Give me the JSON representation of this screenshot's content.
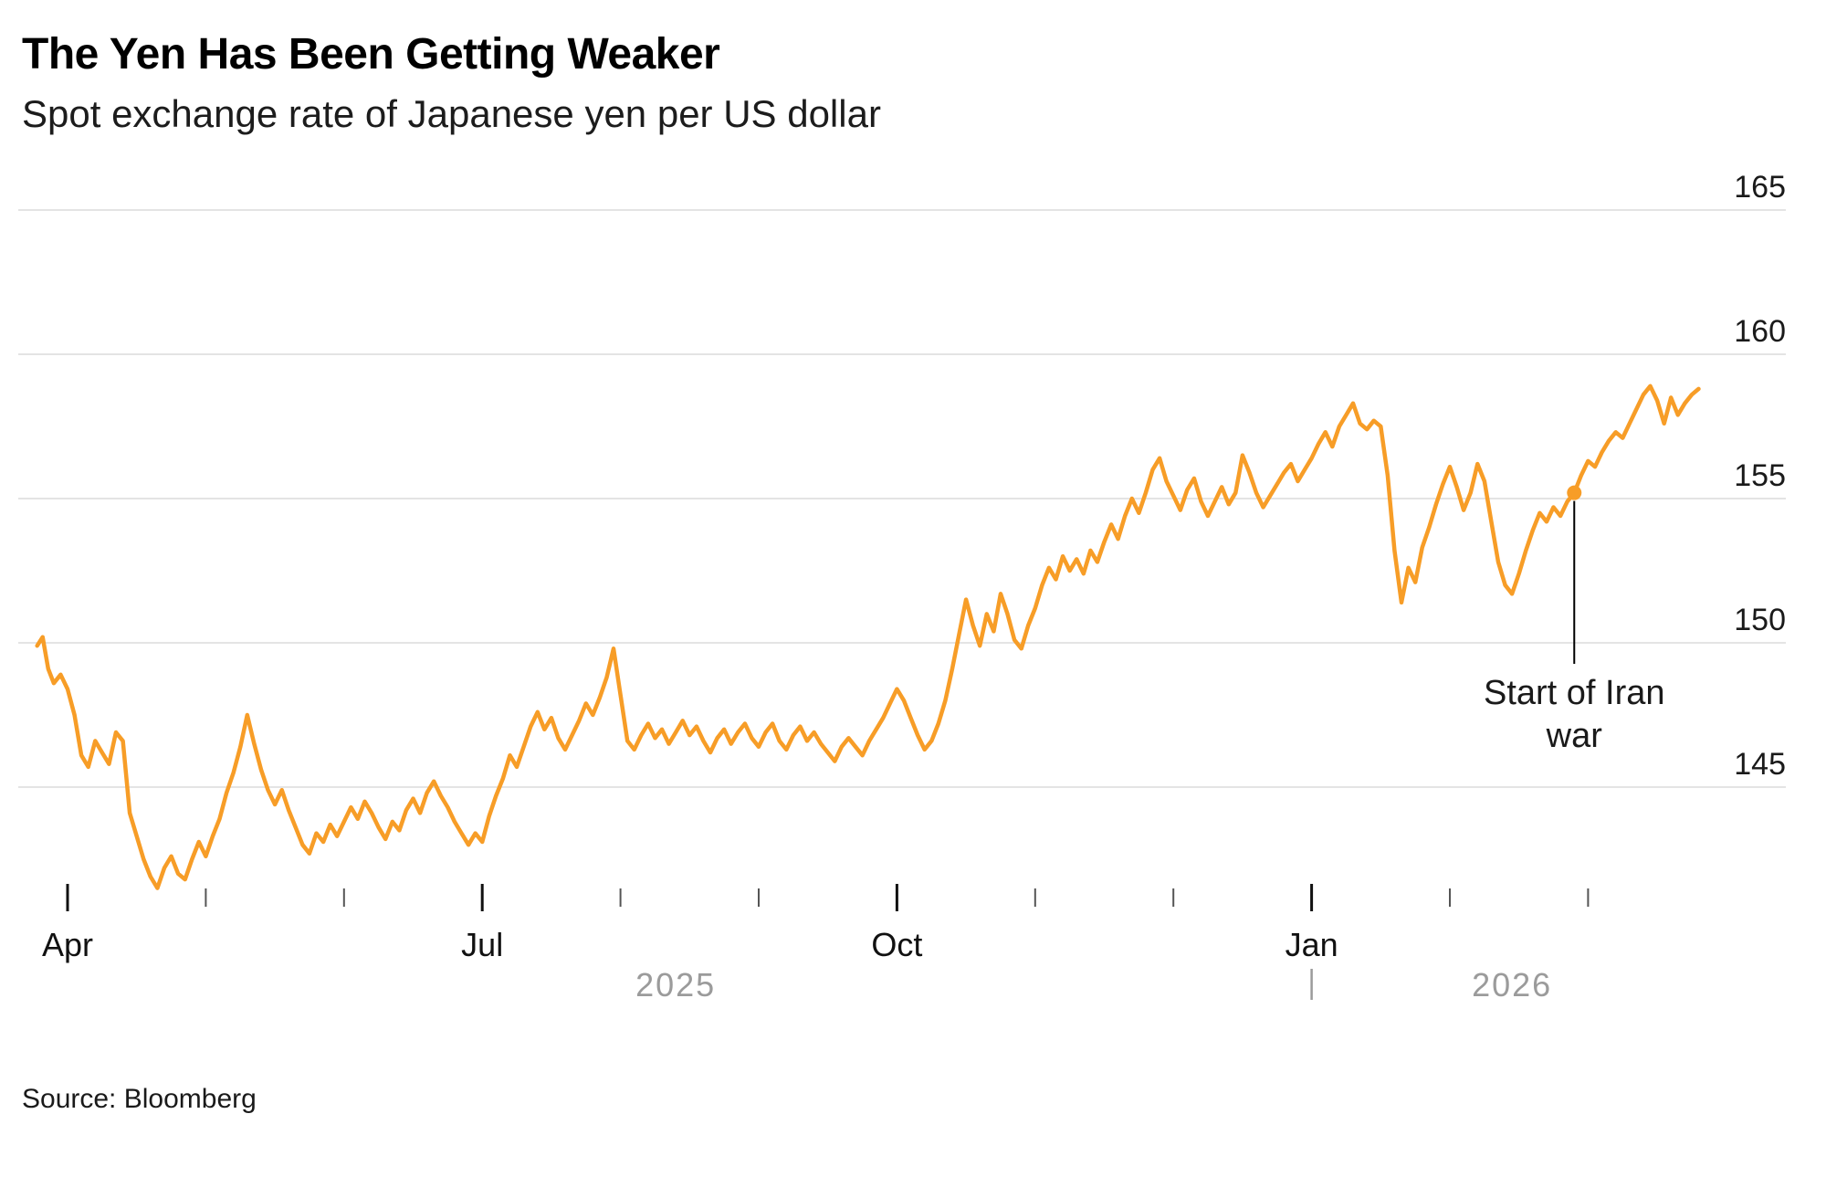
{
  "header": {
    "title": "The Yen Has Been Getting Weaker",
    "subtitle": "Spot exchange rate of Japanese yen per US dollar"
  },
  "source_note": "Source: Bloomberg",
  "chart_data": {
    "type": "line",
    "title": "The Yen Has Been Getting Weaker",
    "subtitle": "Spot exchange rate of Japanese yen per US dollar",
    "xlabel": "",
    "ylabel": "",
    "grid": "horizontal",
    "legend": "none",
    "ylim": [
      141,
      166.5
    ],
    "y_ticks": [
      145,
      150,
      155,
      160,
      165
    ],
    "x_unit": "months since 2025-04-01",
    "x_major_ticks": [
      {
        "t": 0,
        "label": "Apr"
      },
      {
        "t": 3,
        "label": "Jul"
      },
      {
        "t": 6,
        "label": "Oct"
      },
      {
        "t": 9,
        "label": "Jan"
      }
    ],
    "x_minor_ticks": [
      0,
      1,
      2,
      3,
      4,
      5,
      6,
      7,
      8,
      9,
      10,
      11
    ],
    "year_labels": [
      {
        "t": 4.4,
        "label": "2025"
      },
      {
        "t": 10.45,
        "label": "2026"
      }
    ],
    "year_divider_t": 9.0,
    "line_color": "#F79D27",
    "annotation": {
      "t": 10.9,
      "value": 155.2,
      "label_lines": [
        "Start of Iran",
        "war"
      ]
    },
    "series": [
      {
        "name": "Japanese yen per US dollar (spot)",
        "points": [
          [
            -0.22,
            149.9
          ],
          [
            -0.18,
            150.2
          ],
          [
            -0.14,
            149.1
          ],
          [
            -0.1,
            148.6
          ],
          [
            -0.05,
            148.9
          ],
          [
            0,
            148.4
          ],
          [
            0.05,
            147.5
          ],
          [
            0.1,
            146.1
          ],
          [
            0.15,
            145.7
          ],
          [
            0.2,
            146.6
          ],
          [
            0.25,
            146.2
          ],
          [
            0.3,
            145.8
          ],
          [
            0.35,
            146.9
          ],
          [
            0.4,
            146.6
          ],
          [
            0.45,
            144.1
          ],
          [
            0.5,
            143.3
          ],
          [
            0.55,
            142.5
          ],
          [
            0.6,
            141.9
          ],
          [
            0.65,
            141.5
          ],
          [
            0.7,
            142.2
          ],
          [
            0.75,
            142.6
          ],
          [
            0.8,
            142.0
          ],
          [
            0.85,
            141.8
          ],
          [
            0.9,
            142.5
          ],
          [
            0.95,
            143.1
          ],
          [
            1.0,
            142.6
          ],
          [
            1.05,
            143.3
          ],
          [
            1.1,
            143.9
          ],
          [
            1.15,
            144.8
          ],
          [
            1.2,
            145.5
          ],
          [
            1.25,
            146.4
          ],
          [
            1.3,
            147.5
          ],
          [
            1.35,
            146.5
          ],
          [
            1.4,
            145.6
          ],
          [
            1.45,
            144.9
          ],
          [
            1.5,
            144.4
          ],
          [
            1.55,
            144.9
          ],
          [
            1.6,
            144.2
          ],
          [
            1.65,
            143.6
          ],
          [
            1.7,
            143.0
          ],
          [
            1.75,
            142.7
          ],
          [
            1.8,
            143.4
          ],
          [
            1.85,
            143.1
          ],
          [
            1.9,
            143.7
          ],
          [
            1.95,
            143.3
          ],
          [
            2.0,
            143.8
          ],
          [
            2.05,
            144.3
          ],
          [
            2.1,
            143.9
          ],
          [
            2.15,
            144.5
          ],
          [
            2.2,
            144.1
          ],
          [
            2.25,
            143.6
          ],
          [
            2.3,
            143.2
          ],
          [
            2.35,
            143.8
          ],
          [
            2.4,
            143.5
          ],
          [
            2.45,
            144.2
          ],
          [
            2.5,
            144.6
          ],
          [
            2.55,
            144.1
          ],
          [
            2.6,
            144.8
          ],
          [
            2.65,
            145.2
          ],
          [
            2.7,
            144.7
          ],
          [
            2.75,
            144.3
          ],
          [
            2.8,
            143.8
          ],
          [
            2.85,
            143.4
          ],
          [
            2.9,
            143.0
          ],
          [
            2.95,
            143.4
          ],
          [
            3.0,
            143.1
          ],
          [
            3.05,
            144.0
          ],
          [
            3.1,
            144.7
          ],
          [
            3.15,
            145.3
          ],
          [
            3.2,
            146.1
          ],
          [
            3.25,
            145.7
          ],
          [
            3.3,
            146.4
          ],
          [
            3.35,
            147.1
          ],
          [
            3.4,
            147.6
          ],
          [
            3.45,
            147.0
          ],
          [
            3.5,
            147.4
          ],
          [
            3.55,
            146.7
          ],
          [
            3.6,
            146.3
          ],
          [
            3.65,
            146.8
          ],
          [
            3.7,
            147.3
          ],
          [
            3.75,
            147.9
          ],
          [
            3.8,
            147.5
          ],
          [
            3.85,
            148.1
          ],
          [
            3.9,
            148.8
          ],
          [
            3.95,
            149.8
          ],
          [
            4.0,
            148.2
          ],
          [
            4.05,
            146.6
          ],
          [
            4.1,
            146.3
          ],
          [
            4.15,
            146.8
          ],
          [
            4.2,
            147.2
          ],
          [
            4.25,
            146.7
          ],
          [
            4.3,
            147.0
          ],
          [
            4.35,
            146.5
          ],
          [
            4.4,
            146.9
          ],
          [
            4.45,
            147.3
          ],
          [
            4.5,
            146.8
          ],
          [
            4.55,
            147.1
          ],
          [
            4.6,
            146.6
          ],
          [
            4.65,
            146.2
          ],
          [
            4.7,
            146.7
          ],
          [
            4.75,
            147.0
          ],
          [
            4.8,
            146.5
          ],
          [
            4.85,
            146.9
          ],
          [
            4.9,
            147.2
          ],
          [
            4.95,
            146.7
          ],
          [
            5.0,
            146.4
          ],
          [
            5.05,
            146.9
          ],
          [
            5.1,
            147.2
          ],
          [
            5.15,
            146.6
          ],
          [
            5.2,
            146.3
          ],
          [
            5.25,
            146.8
          ],
          [
            5.3,
            147.1
          ],
          [
            5.35,
            146.6
          ],
          [
            5.4,
            146.9
          ],
          [
            5.45,
            146.5
          ],
          [
            5.5,
            146.2
          ],
          [
            5.55,
            145.9
          ],
          [
            5.6,
            146.4
          ],
          [
            5.65,
            146.7
          ],
          [
            5.7,
            146.4
          ],
          [
            5.75,
            146.1
          ],
          [
            5.8,
            146.6
          ],
          [
            5.85,
            147.0
          ],
          [
            5.9,
            147.4
          ],
          [
            5.95,
            147.9
          ],
          [
            6.0,
            148.4
          ],
          [
            6.05,
            148.0
          ],
          [
            6.1,
            147.4
          ],
          [
            6.15,
            146.8
          ],
          [
            6.2,
            146.3
          ],
          [
            6.25,
            146.6
          ],
          [
            6.3,
            147.2
          ],
          [
            6.35,
            148.0
          ],
          [
            6.4,
            149.1
          ],
          [
            6.45,
            150.3
          ],
          [
            6.5,
            151.5
          ],
          [
            6.55,
            150.6
          ],
          [
            6.6,
            149.9
          ],
          [
            6.65,
            151.0
          ],
          [
            6.7,
            150.4
          ],
          [
            6.75,
            151.7
          ],
          [
            6.8,
            151.0
          ],
          [
            6.85,
            150.1
          ],
          [
            6.9,
            149.8
          ],
          [
            6.95,
            150.6
          ],
          [
            7.0,
            151.2
          ],
          [
            7.05,
            152.0
          ],
          [
            7.1,
            152.6
          ],
          [
            7.15,
            152.2
          ],
          [
            7.2,
            153.0
          ],
          [
            7.25,
            152.5
          ],
          [
            7.3,
            152.9
          ],
          [
            7.35,
            152.4
          ],
          [
            7.4,
            153.2
          ],
          [
            7.45,
            152.8
          ],
          [
            7.5,
            153.5
          ],
          [
            7.55,
            154.1
          ],
          [
            7.6,
            153.6
          ],
          [
            7.65,
            154.4
          ],
          [
            7.7,
            155.0
          ],
          [
            7.75,
            154.5
          ],
          [
            7.8,
            155.2
          ],
          [
            7.85,
            156.0
          ],
          [
            7.9,
            156.4
          ],
          [
            7.95,
            155.6
          ],
          [
            8.0,
            155.1
          ],
          [
            8.05,
            154.6
          ],
          [
            8.1,
            155.3
          ],
          [
            8.15,
            155.7
          ],
          [
            8.2,
            154.9
          ],
          [
            8.25,
            154.4
          ],
          [
            8.3,
            154.9
          ],
          [
            8.35,
            155.4
          ],
          [
            8.4,
            154.8
          ],
          [
            8.45,
            155.2
          ],
          [
            8.5,
            156.5
          ],
          [
            8.55,
            155.9
          ],
          [
            8.6,
            155.2
          ],
          [
            8.65,
            154.7
          ],
          [
            8.7,
            155.1
          ],
          [
            8.75,
            155.5
          ],
          [
            8.8,
            155.9
          ],
          [
            8.85,
            156.2
          ],
          [
            8.9,
            155.6
          ],
          [
            8.95,
            156.0
          ],
          [
            9.0,
            156.4
          ],
          [
            9.05,
            156.9
          ],
          [
            9.1,
            157.3
          ],
          [
            9.15,
            156.8
          ],
          [
            9.2,
            157.5
          ],
          [
            9.25,
            157.9
          ],
          [
            9.3,
            158.3
          ],
          [
            9.35,
            157.6
          ],
          [
            9.4,
            157.4
          ],
          [
            9.45,
            157.7
          ],
          [
            9.5,
            157.5
          ],
          [
            9.55,
            155.8
          ],
          [
            9.6,
            153.2
          ],
          [
            9.65,
            151.4
          ],
          [
            9.7,
            152.6
          ],
          [
            9.75,
            152.1
          ],
          [
            9.8,
            153.3
          ],
          [
            9.85,
            154.0
          ],
          [
            9.9,
            154.8
          ],
          [
            9.95,
            155.5
          ],
          [
            10.0,
            156.1
          ],
          [
            10.05,
            155.4
          ],
          [
            10.1,
            154.6
          ],
          [
            10.15,
            155.2
          ],
          [
            10.2,
            156.2
          ],
          [
            10.25,
            155.6
          ],
          [
            10.3,
            154.2
          ],
          [
            10.35,
            152.8
          ],
          [
            10.4,
            152.0
          ],
          [
            10.45,
            151.7
          ],
          [
            10.5,
            152.4
          ],
          [
            10.55,
            153.2
          ],
          [
            10.6,
            153.9
          ],
          [
            10.65,
            154.5
          ],
          [
            10.7,
            154.2
          ],
          [
            10.75,
            154.7
          ],
          [
            10.8,
            154.4
          ],
          [
            10.85,
            154.9
          ],
          [
            10.9,
            155.2
          ],
          [
            10.95,
            155.8
          ],
          [
            11.0,
            156.3
          ],
          [
            11.05,
            156.1
          ],
          [
            11.1,
            156.6
          ],
          [
            11.15,
            157.0
          ],
          [
            11.2,
            157.3
          ],
          [
            11.25,
            157.1
          ],
          [
            11.3,
            157.6
          ],
          [
            11.35,
            158.1
          ],
          [
            11.4,
            158.6
          ],
          [
            11.45,
            158.9
          ],
          [
            11.5,
            158.4
          ],
          [
            11.55,
            157.6
          ],
          [
            11.6,
            158.5
          ],
          [
            11.65,
            157.9
          ],
          [
            11.7,
            158.3
          ],
          [
            11.75,
            158.6
          ],
          [
            11.8,
            158.8
          ]
        ]
      }
    ]
  }
}
